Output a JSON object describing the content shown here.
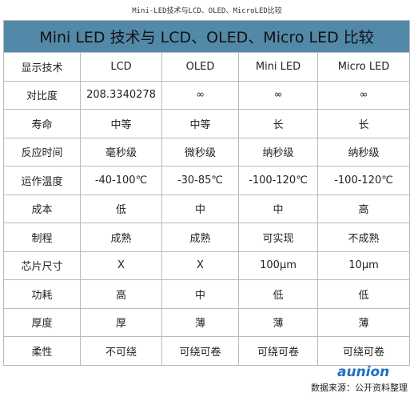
{
  "caption": "Mini-LED技术与LCD、OLED、MicroLED比较",
  "table": {
    "title": "Mini LED 技术与 LCD、OLED、Micro LED 比较",
    "header": [
      "显示技术",
      "LCD",
      "OLED",
      "Mini LED",
      "Micro LED"
    ],
    "rows": [
      [
        "对比度",
        "208.3340278",
        "∞",
        "∞",
        "∞"
      ],
      [
        "寿命",
        "中等",
        "中等",
        "长",
        "长"
      ],
      [
        "反应时间",
        "毫秒级",
        "微秒级",
        "纳秒级",
        "纳秒级"
      ],
      [
        "运作温度",
        "-40-100℃",
        "-30-85℃",
        "-100-120℃",
        "-100-120℃"
      ],
      [
        "成本",
        "低",
        "中",
        "中",
        "高"
      ],
      [
        "制程",
        "成熟",
        "成熟",
        "可实现",
        "不成熟"
      ],
      [
        "芯片尺寸",
        "X",
        "X",
        "100μm",
        "10μm"
      ],
      [
        "功耗",
        "高",
        "中",
        "低",
        "低"
      ],
      [
        "厚度",
        "厚",
        "薄",
        "薄",
        "薄"
      ],
      [
        "柔性",
        "不可绕",
        "可绕可卷",
        "可绕可卷",
        "可绕可卷"
      ]
    ]
  },
  "source": "数据来源：公开资料整理",
  "logo": "aunion"
}
